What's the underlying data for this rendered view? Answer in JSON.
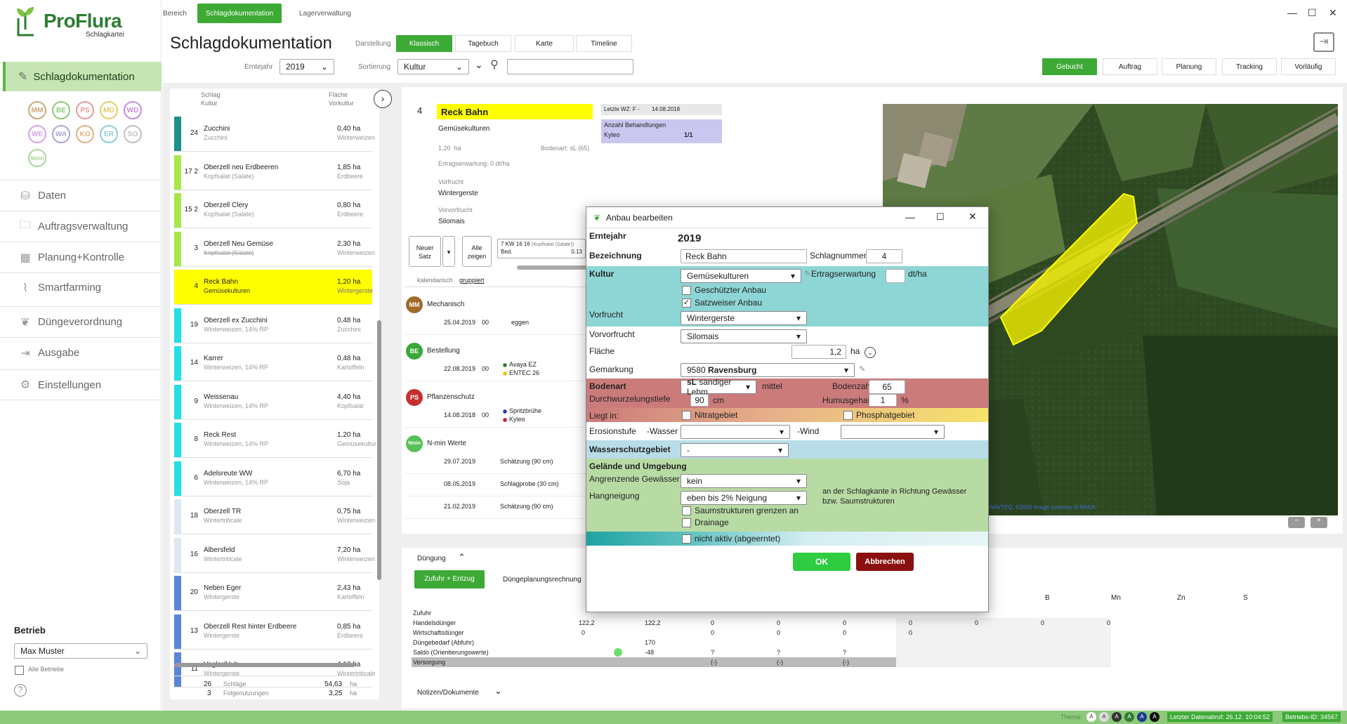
{
  "app": {
    "name": "ProFlura",
    "subtitle": "Schlagkartei"
  },
  "top_tabs": [
    {
      "label": "Bereich",
      "active": false
    },
    {
      "label": "Schlagdokumentation",
      "active": true
    },
    {
      "label": "Lagerverwaltung",
      "active": false
    }
  ],
  "page_title": "Schlagdokumentation",
  "darstellung": {
    "label": "Darstellung",
    "options": [
      "Klassisch",
      "Tagebuch",
      "Karte",
      "Timeline"
    ],
    "active": "Klassisch"
  },
  "erntejahr": {
    "label": "Erntejahr",
    "value": "2019"
  },
  "sortierung": {
    "label": "Sortierung",
    "value": "Kultur"
  },
  "right_tabs": [
    "Gebucht",
    "Auftrag",
    "Planung",
    "Tracking",
    "Vorläufig"
  ],
  "sidebar": {
    "main_item": "Schlagdokumentation",
    "chips": [
      {
        "label": "MM",
        "color": "#c9a87c"
      },
      {
        "label": "BE",
        "color": "#8cc97a"
      },
      {
        "label": "PS",
        "color": "#e79a9a"
      },
      {
        "label": "MD",
        "color": "#e2cf6e"
      },
      {
        "label": "WD",
        "color": "#c58ae0"
      },
      {
        "label": "WE",
        "color": "#d8a2e8"
      },
      {
        "label": "WA",
        "color": "#a8a8d0"
      },
      {
        "label": "KO",
        "color": "#e0b07e"
      },
      {
        "label": "ER",
        "color": "#8fcbd6"
      },
      {
        "label": "SO",
        "color": "#c0c0c0"
      },
      {
        "label": "Nmin",
        "color": "#a7d69a"
      }
    ],
    "items": [
      "Daten",
      "Auftragsverwaltung",
      "Planung+Kontrolle",
      "Smartfarming",
      "Düngeverordnung",
      "Ausgabe",
      "Einstellungen"
    ],
    "betrieb_label": "Betrieb",
    "betrieb_value": "Max Muster",
    "alle_betriebe": "Alle Betriebe"
  },
  "list": {
    "headers": {
      "schlag": "Schlag",
      "kultur": "Kultur",
      "flaeche": "Fläche",
      "vorkultur": "Vorkultur"
    },
    "rows": [
      {
        "num": "24",
        "name": "Zucchini",
        "sub": "Zucchini",
        "area": "0,40 ha",
        "prev": "Winterweizen",
        "color": "#1c8f8f"
      },
      {
        "num": "17 2",
        "name": "Oberzell neu Erdbeeren",
        "sub": "Kopfsalat (Salate)",
        "area": "1,85 ha",
        "prev": "Erdbeere",
        "color": "#a6e84a"
      },
      {
        "num": "15 2",
        "name": "Oberzell Clery",
        "sub": "Kopfsalat (Salate)",
        "area": "0,80 ha",
        "prev": "Erdbeere",
        "color": "#a6e84a"
      },
      {
        "num": "3",
        "name": "Oberzell Neu Gemüse",
        "sub": "Kopfsalat (Salate)",
        "area": "2,30 ha",
        "prev": "Winterweizen",
        "color": "#a6e84a"
      },
      {
        "num": "4",
        "name": "Reck Bahn",
        "sub": "Gemüsekulturen",
        "area": "1,20 ha",
        "prev": "Wintergerste",
        "color": "#ffff00",
        "selected": true
      },
      {
        "num": "19",
        "name": "Oberzell ex Zucchini",
        "sub": "Winterweizen, 14% RP",
        "area": "0,48 ha",
        "prev": "Zucchini",
        "color": "#22e0e6"
      },
      {
        "num": "14",
        "name": "Karrer",
        "sub": "Winterweizen, 14% RP",
        "area": "0,48 ha",
        "prev": "Kartoffeln",
        "color": "#22e0e6"
      },
      {
        "num": "9",
        "name": "Weissenau",
        "sub": "Winterweizen, 14% RP",
        "area": "4,40 ha",
        "prev": "Kopfsalat",
        "color": "#22e0e6"
      },
      {
        "num": "8",
        "name": "Reck Rest",
        "sub": "Winterweizen, 14% RP",
        "area": "1,20 ha",
        "prev": "Gemüsekultur",
        "color": "#22e0e6"
      },
      {
        "num": "6",
        "name": "Adelsreute WW",
        "sub": "Winterweizen, 14% RP",
        "area": "6,70 ha",
        "prev": "Soja",
        "color": "#22e0e6"
      },
      {
        "num": "18",
        "name": "Oberzell TR",
        "sub": "Wintertriticale",
        "area": "0,75 ha",
        "prev": "Winterweizen",
        "color": "#dde8f5"
      },
      {
        "num": "16",
        "name": "Albersfeld",
        "sub": "Wintertriticale",
        "area": "7,20 ha",
        "prev": "Winterweizen",
        "color": "#dde8f5"
      },
      {
        "num": "20",
        "name": "Neben Eger",
        "sub": "Wintergerste",
        "area": "2,43 ha",
        "prev": "Kartoffeln",
        "color": "#5a86d9"
      },
      {
        "num": "13",
        "name": "Oberzell Rest hinter Erdbeere",
        "sub": "Wintergerste",
        "area": "0,85 ha",
        "prev": "Erdbeere",
        "color": "#5a86d9"
      },
      {
        "num": "11",
        "name": "Vogler/Hub",
        "sub": "Wintergerste",
        "area": "4,13 ha",
        "prev": "Wintertriticale",
        "color": "#5a86d9"
      }
    ],
    "footer": {
      "schlaege_count": "26",
      "schlaege_label": "Schläge",
      "schlaege_area": "54,63",
      "folge_count": "3",
      "folge_label": "Folgenutzungen",
      "folge_area": "3,25",
      "unit": "ha"
    }
  },
  "detail": {
    "num": "4",
    "name": "Reck Bahn",
    "kultur": "Gemüsekulturen",
    "flaeche": "1,20",
    "flaeche_unit": "ha",
    "bodenart": "Bodenart: sL (65)",
    "ertragserwartung": "Ertragserwartung: 0 dt/ha",
    "vorfrucht_label": "Vorfrucht",
    "vorfrucht": "Wintergerste",
    "vorvorfrucht_label": "Vorvorfrucht",
    "vorvorfrucht": "Silomais",
    "letzte_wz_label": "Letzte WZ: F  -",
    "letzte_wz_date": "14.08.2018",
    "anzahl_label": "Anzahl Behandlungen",
    "anzahl_item": "Kyleo",
    "anzahl_value": "1/1",
    "btn_neuer_satz": "Neuer Satz",
    "btn_alle_zeigen": "Alle zeigen",
    "satz_line1": "7  KW 16  16",
    "satz_line1_sub": "(Kopfsalat (Salate))",
    "satz_line2": "Bed.",
    "satz_line2_val": "0.13",
    "kalendarisch": "kalendarisch",
    "gruppiert": "gruppiert",
    "groups": [
      {
        "chip": "MM",
        "color": "#a06a2a",
        "label": "Mechanisch",
        "entries": [
          {
            "date": "25.04.2019",
            "time": "00",
            "text": "eggen",
            "text2": ""
          }
        ]
      },
      {
        "chip": "BE",
        "color": "#38a838",
        "label": "Bestellung",
        "entries": [
          {
            "date": "22.08.2019",
            "time": "00",
            "text": "Avaya EZ",
            "text2": "ENTEC 26"
          }
        ]
      },
      {
        "chip": "PS",
        "color": "#c43030",
        "label": "Pflanzenschutz",
        "entries": [
          {
            "date": "14.08.2018",
            "time": "00",
            "text": "Spritzbrühe",
            "text2": "Kyleo"
          }
        ]
      },
      {
        "chip": "Nmin",
        "color": "#58c058",
        "label": "N-min Werte",
        "entries": [
          {
            "date": "29.07.2019",
            "time": "",
            "text": "Schätzung (90 cm)",
            "text2": ""
          },
          {
            "date": "08.05.2019",
            "time": "",
            "text": "Schlagprobe (30 cm)",
            "text2": ""
          },
          {
            "date": "21.02.2019",
            "time": "",
            "text": "Schätzung (90 cm)",
            "text2": ""
          }
        ]
      }
    ],
    "map_copyright": "© NAVTEQ, ©2025 Image courtesy of NASA"
  },
  "dialog": {
    "title": "Anbau bearbeiten",
    "erntejahr_label": "Erntejahr",
    "erntejahr": "2019",
    "bezeichnung_label": "Bezeichnung",
    "bezeichnung": "Reck Bahn",
    "schlagnummer_label": "Schlagnummer",
    "schlagnummer": "4",
    "kultur_label": "Kultur",
    "kultur": "Gemüsekulturen",
    "ertragserwartung_label": "Ertragserwartung",
    "ertragserwartung_unit": "dt/ha",
    "geschuetzt_label": "Geschützter Anbau",
    "geschuetzt": false,
    "satzweise_label": "Satzweiser Anbau",
    "satzweise": true,
    "vorfrucht_label": "Vorfrucht",
    "vorfrucht": "Wintergerste",
    "vorvorfrucht_label": "Vorvorfrucht",
    "vorvorfrucht": "Silomais",
    "flaeche_label": "Fläche",
    "flaeche": "1,2",
    "flaeche_unit": "ha",
    "gemarkung_label": "Gemarkung",
    "gemarkung_code": "9580",
    "gemarkung_name": "Ravensburg",
    "bodenart_label": "Bodenart",
    "bodenart_code": "sL",
    "bodenart_name": "sandiger Lehm",
    "bodenart_grade": "mittel",
    "bodenzahl_label": "Bodenzahl",
    "bodenzahl": "65",
    "durchwurzel_label": "Durchwurzelungstiefe",
    "durchwurzel": "90",
    "durchwurzel_unit": "cm",
    "humus_label": "Humusgehalt",
    "humus": "1",
    "humus_unit": "%",
    "liegt_label": "Liegt in:",
    "nitrat_label": "Nitratgebiet",
    "phosphat_label": "Phosphatgebiet",
    "erosion_label": "Erosionstufe",
    "wasser_label": "-Wasser",
    "wind_label": "-Wind",
    "wsg_label": "Wasserschutzgebiet",
    "wsg_value": "-",
    "gelaende_label": "Gelände und Umgebung",
    "gewaesser_label": "Angrenzende Gewässer",
    "gewaesser": "kein",
    "hang_label": "Hangneigung",
    "hang": "eben bis 2% Neigung",
    "hang_note": "an der Schlagkante in Richtung Gewässer bzw. Saumstrukturen",
    "saum_label": "Saumstrukturen grenzen an",
    "drainage_label": "Drainage",
    "nichtaktiv_label": "nicht aktiv (abgeerntet)",
    "ok": "OK",
    "cancel": "Abbrechen"
  },
  "bottom": {
    "duengung_label": "Düngung",
    "btn_zufuhr": "Zufuhr + Entzug",
    "btn_planung": "Düngeplanungsrechnung",
    "col_heads": [
      "B",
      "Mn",
      "Zn",
      "S"
    ],
    "rows": [
      {
        "label": "Zufuhr",
        "bold": false,
        "v": [
          "",
          "",
          "",
          "",
          "",
          "",
          "",
          "",
          "",
          ""
        ]
      },
      {
        "label": "Handelsdünger",
        "bold": false,
        "v": [
          "122,2",
          "122,2",
          "0",
          "0",
          "0",
          "0",
          "0",
          "0",
          "0"
        ]
      },
      {
        "label": "Wirtschaftsdünger",
        "bold": false,
        "v": [
          "0",
          "0",
          "0",
          "0",
          "0"
        ]
      },
      {
        "label": "Düngebedarf (Abfuhr)",
        "bold": false,
        "v": [
          "170"
        ]
      },
      {
        "label": "Saldo (Orientierungswerte)",
        "bold": false,
        "v": [
          "-48",
          "?",
          "?",
          "?"
        ]
      },
      {
        "label": "Versorgung",
        "bold": false,
        "v": [
          "(-)",
          "(-)",
          "(-)"
        ]
      }
    ],
    "notizen_label": "Notizen/Dokumente"
  },
  "status": {
    "thema_label": "Thema:",
    "last_update": "Letzter Datenabruf: 26.12. 10:04:52",
    "betrieb_id": "Betriebs-ID: 34567"
  }
}
